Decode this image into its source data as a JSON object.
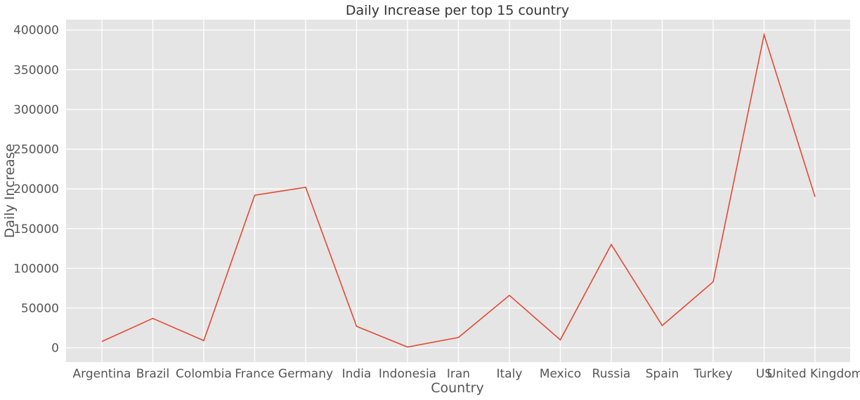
{
  "chart_data": {
    "type": "line",
    "title": "Daily Increase per top 15 country",
    "xlabel": "Country",
    "ylabel": "Daily Increase",
    "categories": [
      "Argentina",
      "Brazil",
      "Colombia",
      "France",
      "Germany",
      "India",
      "Indonesia",
      "Iran",
      "Italy",
      "Mexico",
      "Russia",
      "Spain",
      "Turkey",
      "US",
      "United Kingdom"
    ],
    "series": [
      {
        "values": [
          8000,
          37000,
          9000,
          192000,
          202000,
          27000,
          1000,
          13000,
          66000,
          10000,
          130000,
          28000,
          83000,
          394000,
          190000
        ]
      }
    ],
    "yticks": [
      "0",
      "50000",
      "100000",
      "150000",
      "200000",
      "250000",
      "300000",
      "350000",
      "400000"
    ],
    "ylim": [
      -18000,
      413000
    ],
    "grid": true,
    "colors": {
      "line": "#E24A33",
      "background": "#E5E5E5",
      "grid": "#FFFFFF"
    }
  }
}
